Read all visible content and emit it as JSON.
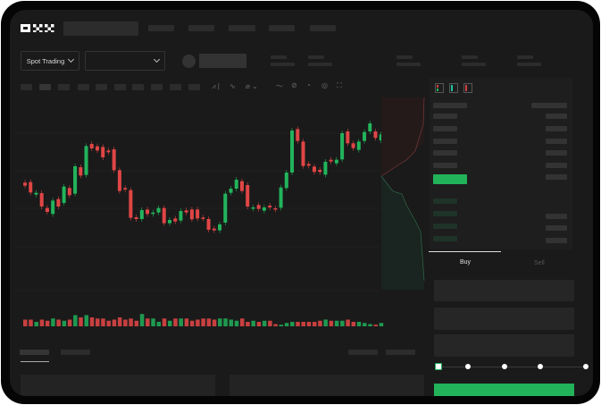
{
  "header": {
    "logo": "OKX",
    "nav_items": [
      "",
      "",
      "",
      "",
      ""
    ]
  },
  "market_bar": {
    "mode_select": "Spot Trading",
    "pair_select": ""
  },
  "order_form": {
    "tabs": [
      "Buy",
      "Sell"
    ],
    "active_tab": "Buy",
    "slider_stops": 5,
    "slider_value_percent": 0
  },
  "colors": {
    "up": "#22b45c",
    "down": "#e04545",
    "background": "#1a1a1a",
    "accent": "#21b25a"
  },
  "chart_data": {
    "type": "candlestick",
    "candles": [
      {
        "o": 170,
        "c": 160
      },
      {
        "o": 172,
        "c": 137
      },
      {
        "o": 130,
        "c": 136
      },
      {
        "o": 135,
        "c": 90
      },
      {
        "o": 85,
        "c": 72
      },
      {
        "o": 65,
        "c": 110
      },
      {
        "o": 115,
        "c": 90
      },
      {
        "o": 102,
        "c": 157
      },
      {
        "o": 152,
        "c": 128
      },
      {
        "o": 133,
        "c": 225
      },
      {
        "o": 222,
        "c": 194
      },
      {
        "o": 196,
        "c": 293
      },
      {
        "o": 300,
        "c": 285
      },
      {
        "o": 292,
        "c": 278
      },
      {
        "o": 290,
        "c": 255
      },
      {
        "o": 278,
        "c": 272
      },
      {
        "o": 282,
        "c": 212
      },
      {
        "o": 212,
        "c": 142
      },
      {
        "o": 152,
        "c": 147
      },
      {
        "o": 145,
        "c": 52
      },
      {
        "o": 54,
        "c": 48
      },
      {
        "o": 48,
        "c": 78
      },
      {
        "o": 80,
        "c": 65
      },
      {
        "o": 65,
        "c": 70
      },
      {
        "o": 70,
        "c": 85
      },
      {
        "o": 85,
        "c": 34
      },
      {
        "o": 34,
        "c": 45
      },
      {
        "o": 50,
        "c": 40
      },
      {
        "o": 43,
        "c": 75
      },
      {
        "o": 77,
        "c": 70
      },
      {
        "o": 80,
        "c": 47
      },
      {
        "o": 80,
        "c": 50
      },
      {
        "o": 53,
        "c": 50
      },
      {
        "o": 48,
        "c": 12
      },
      {
        "o": 16,
        "c": 10
      },
      {
        "o": 10,
        "c": 30
      },
      {
        "o": 36,
        "c": 133
      },
      {
        "o": 136,
        "c": 150
      },
      {
        "o": 150,
        "c": 180
      },
      {
        "o": 175,
        "c": 142
      },
      {
        "o": 162,
        "c": 90
      },
      {
        "o": 83,
        "c": 87
      },
      {
        "o": 95,
        "c": 82
      },
      {
        "o": 76,
        "c": 87
      },
      {
        "o": 93,
        "c": 87
      },
      {
        "o": 84,
        "c": 80
      },
      {
        "o": 86,
        "c": 154
      },
      {
        "o": 152,
        "c": 204
      },
      {
        "o": 204,
        "c": 345
      },
      {
        "o": 350,
        "c": 310
      },
      {
        "o": 308,
        "c": 226
      },
      {
        "o": 233,
        "c": 227
      },
      {
        "o": 224,
        "c": 206
      },
      {
        "o": 213,
        "c": 206
      },
      {
        "o": 197,
        "c": 240
      },
      {
        "o": 247,
        "c": 241
      },
      {
        "o": 235,
        "c": 247
      },
      {
        "o": 248,
        "c": 336
      },
      {
        "o": 342,
        "c": 302
      },
      {
        "o": 302,
        "c": 286
      },
      {
        "o": 280,
        "c": 308
      },
      {
        "o": 310,
        "c": 340
      },
      {
        "o": 342,
        "c": 369
      },
      {
        "o": 342,
        "c": 320
      },
      {
        "o": 312,
        "c": 332
      }
    ],
    "volumes": [
      6,
      6,
      4,
      6,
      5,
      7,
      6,
      5,
      6,
      10,
      8,
      10,
      8,
      7,
      7,
      5,
      6,
      8,
      6,
      7,
      5,
      11,
      7,
      7,
      4,
      7,
      5,
      7,
      7,
      7,
      5,
      6,
      7,
      7,
      6,
      7,
      7,
      6,
      5,
      7,
      4,
      5,
      4,
      5,
      5,
      2,
      1.5,
      3,
      4,
      4,
      4,
      4,
      4,
      5,
      6,
      5,
      5,
      5,
      6,
      4,
      4,
      3,
      2,
      1.5,
      3
    ],
    "grid": true
  }
}
